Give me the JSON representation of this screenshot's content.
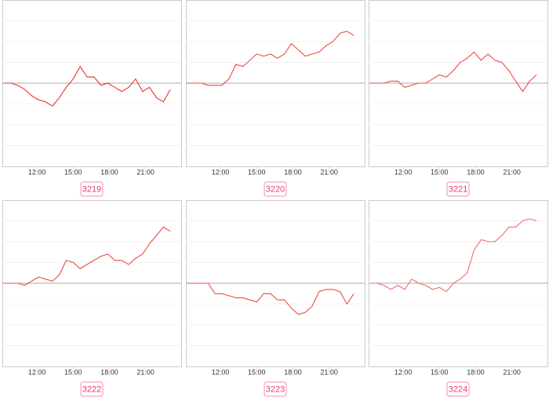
{
  "chart_data": [
    {
      "type": "line",
      "title": "3219",
      "color": "#e8332d",
      "xlim": [
        9.13,
        23.95
      ],
      "ylim": [
        -4,
        4
      ],
      "xticks": [
        {
          "value": 12,
          "label": "12:00"
        },
        {
          "value": 15,
          "label": "15:00"
        },
        {
          "value": 18,
          "label": "18:00"
        },
        {
          "value": 21,
          "label": "21:00"
        }
      ],
      "x": [
        9.25,
        9.825,
        10.4,
        10.975,
        11.55,
        12.125,
        12.7,
        13.275,
        13.85,
        14.425,
        15,
        15.575,
        16.15,
        16.725,
        17.3,
        17.875,
        18.45,
        19.025,
        19.6,
        20.175,
        20.75,
        21.325,
        21.9,
        22.475,
        23.05
      ],
      "values": [
        0,
        0,
        -0.1,
        -0.3,
        -0.6,
        -0.8,
        -0.9,
        -1.1,
        -0.7,
        -0.2,
        0.2,
        0.8,
        0.3,
        0.3,
        -0.1,
        0,
        -0.2,
        -0.4,
        -0.2,
        0.2,
        -0.4,
        -0.2,
        -0.7,
        -0.9,
        -0.3
      ]
    },
    {
      "type": "line",
      "title": "3220",
      "color": "#ee4a44",
      "xlim": [
        9.13,
        23.95
      ],
      "ylim": [
        -4,
        4
      ],
      "xticks": [
        {
          "value": 12,
          "label": "12:00"
        },
        {
          "value": 15,
          "label": "15:00"
        },
        {
          "value": 18,
          "label": "18:00"
        },
        {
          "value": 21,
          "label": "21:00"
        }
      ],
      "x": [
        9.25,
        9.825,
        10.4,
        10.975,
        11.55,
        12.125,
        12.7,
        13.275,
        13.85,
        14.425,
        15,
        15.575,
        16.15,
        16.725,
        17.3,
        17.875,
        18.45,
        19.025,
        19.6,
        20.175,
        20.75,
        21.325,
        21.9,
        22.475,
        23.05
      ],
      "values": [
        0,
        0,
        0,
        -0.1,
        -0.1,
        -0.1,
        0.2,
        0.9,
        0.8,
        1.1,
        1.4,
        1.3,
        1.4,
        1.2,
        1.4,
        1.9,
        1.6,
        1.3,
        1.4,
        1.5,
        1.8,
        2.0,
        2.4,
        2.5,
        2.3
      ]
    },
    {
      "type": "line",
      "title": "3221",
      "color": "#ee4a44",
      "xlim": [
        9.13,
        23.95
      ],
      "ylim": [
        -4,
        4
      ],
      "xticks": [
        {
          "value": 12,
          "label": "12:00"
        },
        {
          "value": 15,
          "label": "15:00"
        },
        {
          "value": 18,
          "label": "18:00"
        },
        {
          "value": 21,
          "label": "21:00"
        }
      ],
      "x": [
        9.25,
        9.825,
        10.4,
        10.975,
        11.55,
        12.125,
        12.7,
        13.275,
        13.85,
        14.425,
        15,
        15.575,
        16.15,
        16.725,
        17.3,
        17.875,
        18.45,
        19.025,
        19.6,
        20.175,
        20.75,
        21.325,
        21.9,
        22.475,
        23.05
      ],
      "values": [
        0,
        0,
        0,
        0.1,
        0.1,
        -0.2,
        -0.1,
        0,
        0,
        0.2,
        0.4,
        0.3,
        0.6,
        1.0,
        1.2,
        1.5,
        1.1,
        1.4,
        1.1,
        1.0,
        0.6,
        0.1,
        -0.4,
        0.1,
        0.4
      ]
    },
    {
      "type": "line",
      "title": "3222",
      "color": "#ee4a44",
      "xlim": [
        9.13,
        23.95
      ],
      "ylim": [
        -4,
        4
      ],
      "xticks": [
        {
          "value": 12,
          "label": "12:00"
        },
        {
          "value": 15,
          "label": "15:00"
        },
        {
          "value": 18,
          "label": "18:00"
        },
        {
          "value": 21,
          "label": "21:00"
        }
      ],
      "x": [
        9.25,
        9.825,
        10.4,
        10.975,
        11.55,
        12.125,
        12.7,
        13.275,
        13.85,
        14.425,
        15,
        15.575,
        16.15,
        16.725,
        17.3,
        17.875,
        18.45,
        19.025,
        19.6,
        20.175,
        20.75,
        21.325,
        21.9,
        22.475,
        23.05
      ],
      "values": [
        0,
        0,
        0,
        -0.1,
        0.1,
        0.3,
        0.2,
        0.1,
        0.4,
        1.1,
        1.0,
        0.7,
        0.9,
        1.1,
        1.3,
        1.4,
        1.1,
        1.1,
        0.9,
        1.2,
        1.4,
        1.9,
        2.3,
        2.7,
        2.5
      ]
    },
    {
      "type": "line",
      "title": "3223",
      "color": "#ee4a44",
      "xlim": [
        9.13,
        23.95
      ],
      "ylim": [
        -4,
        4
      ],
      "xticks": [
        {
          "value": 12,
          "label": "12:00"
        },
        {
          "value": 15,
          "label": "15:00"
        },
        {
          "value": 18,
          "label": "18:00"
        },
        {
          "value": 21,
          "label": "21:00"
        }
      ],
      "x": [
        9.25,
        9.825,
        10.4,
        10.975,
        11.55,
        12.125,
        12.7,
        13.275,
        13.85,
        14.425,
        15,
        15.575,
        16.15,
        16.725,
        17.3,
        17.875,
        18.45,
        19.025,
        19.6,
        20.175,
        20.75,
        21.325,
        21.9,
        22.475,
        23.05
      ],
      "values": [
        0,
        0,
        0,
        0,
        -0.5,
        -0.5,
        -0.6,
        -0.7,
        -0.7,
        -0.8,
        -0.9,
        -0.5,
        -0.5,
        -0.8,
        -0.8,
        -1.2,
        -1.5,
        -1.4,
        -1.1,
        -0.4,
        -0.3,
        -0.3,
        -0.4,
        -1.0,
        -0.5
      ]
    },
    {
      "type": "line",
      "title": "3224",
      "color": "#f26a6a",
      "xlim": [
        9.13,
        23.95
      ],
      "ylim": [
        -4,
        4
      ],
      "xticks": [
        {
          "value": 12,
          "label": "12:00"
        },
        {
          "value": 15,
          "label": "15:00"
        },
        {
          "value": 18,
          "label": "18:00"
        },
        {
          "value": 21,
          "label": "21:00"
        }
      ],
      "x": [
        9.25,
        9.825,
        10.4,
        10.975,
        11.55,
        12.125,
        12.7,
        13.275,
        13.85,
        14.425,
        15,
        15.575,
        16.15,
        16.725,
        17.3,
        17.875,
        18.45,
        19.025,
        19.6,
        20.175,
        20.75,
        21.325,
        21.9,
        22.475,
        23.05
      ],
      "values": [
        0,
        0,
        -0.1,
        -0.3,
        -0.1,
        -0.3,
        0.2,
        0,
        -0.1,
        -0.3,
        -0.2,
        -0.4,
        0,
        0.2,
        0.5,
        1.6,
        2.1,
        2.0,
        2.0,
        2.3,
        2.7,
        2.7,
        3.0,
        3.1,
        3.0
      ]
    }
  ]
}
